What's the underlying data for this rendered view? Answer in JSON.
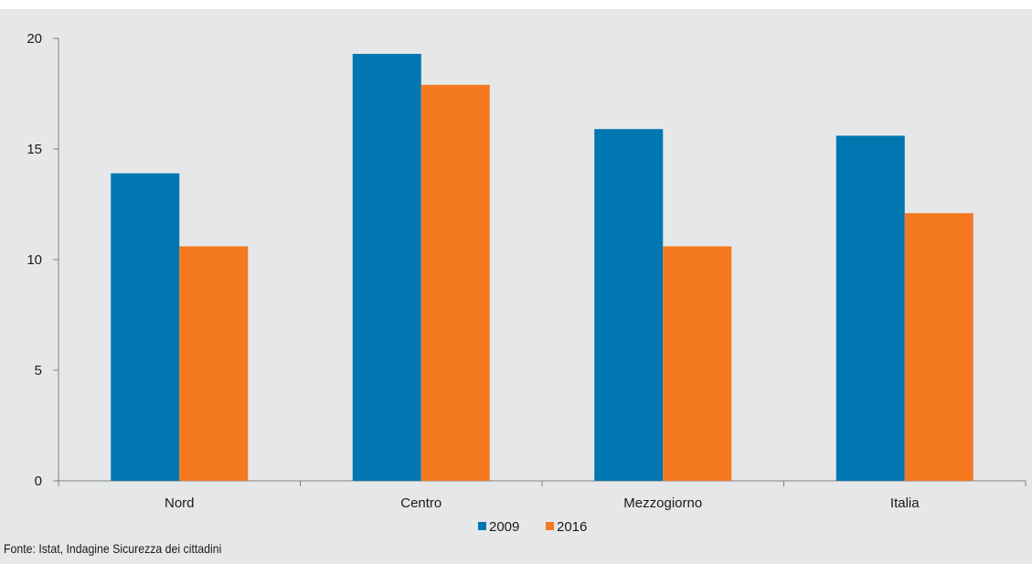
{
  "chart_data": {
    "type": "bar",
    "categories": [
      "Nord",
      "Centro",
      "Mezzogiorno",
      "Italia"
    ],
    "series": [
      {
        "name": "2009",
        "values": [
          13.9,
          19.3,
          15.9,
          15.6
        ],
        "color": "#0077b0"
      },
      {
        "name": "2016",
        "values": [
          10.6,
          17.9,
          10.6,
          12.1
        ],
        "color": "#f47920"
      }
    ],
    "ylim": [
      0,
      20
    ],
    "yticks": [
      0,
      5,
      10,
      15,
      20
    ],
    "grid": false,
    "legend": "bottom-center"
  },
  "source": "Fonte: Istat, Indagine Sicurezza dei cittadini"
}
